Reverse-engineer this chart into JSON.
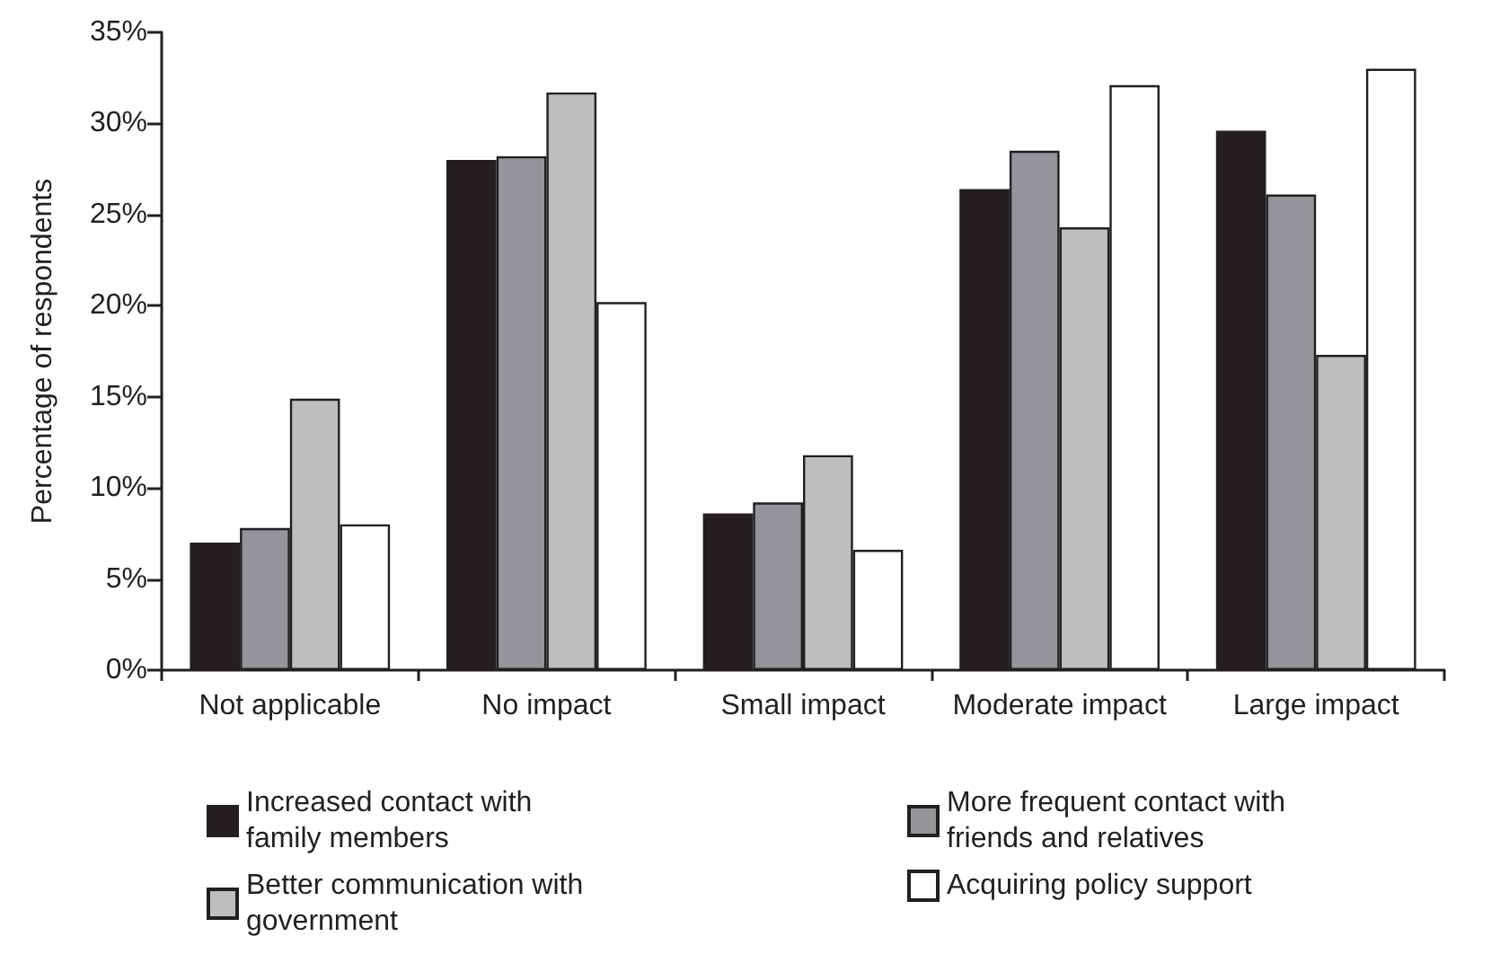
{
  "chart_data": {
    "type": "bar",
    "ylabel": "Percentage of respondents",
    "categories": [
      "Not applicable",
      "No impact",
      "Small impact",
      "Moderate impact",
      "Large impact"
    ],
    "series": [
      {
        "name": "Increased contact with family members",
        "color": "#231f20",
        "values": [
          7.0,
          28.0,
          8.6,
          26.4,
          29.6
        ]
      },
      {
        "name": "More frequent contact with friends and relatives",
        "color": "#939598",
        "values": [
          7.8,
          28.2,
          9.2,
          28.5,
          26.1
        ]
      },
      {
        "name": "Better communication with government",
        "color": "#bcbec0",
        "values": [
          14.9,
          31.7,
          11.8,
          24.3,
          17.3
        ]
      },
      {
        "name": "Acquiring policy support",
        "color": "#ffffff",
        "values": [
          8.0,
          20.2,
          6.6,
          32.1,
          33.0
        ]
      }
    ],
    "ylim": [
      0,
      35
    ],
    "yticks": [
      {
        "value": 0,
        "label": "0%"
      },
      {
        "value": 5,
        "label": "5%"
      },
      {
        "value": 10,
        "label": "10%"
      },
      {
        "value": 15,
        "label": "15%"
      },
      {
        "value": 20,
        "label": "20%"
      },
      {
        "value": 25,
        "label": "25%"
      },
      {
        "value": 30,
        "label": "30%"
      },
      {
        "value": 35,
        "label": "35%"
      }
    ],
    "grid": false,
    "legend": "bottom"
  }
}
